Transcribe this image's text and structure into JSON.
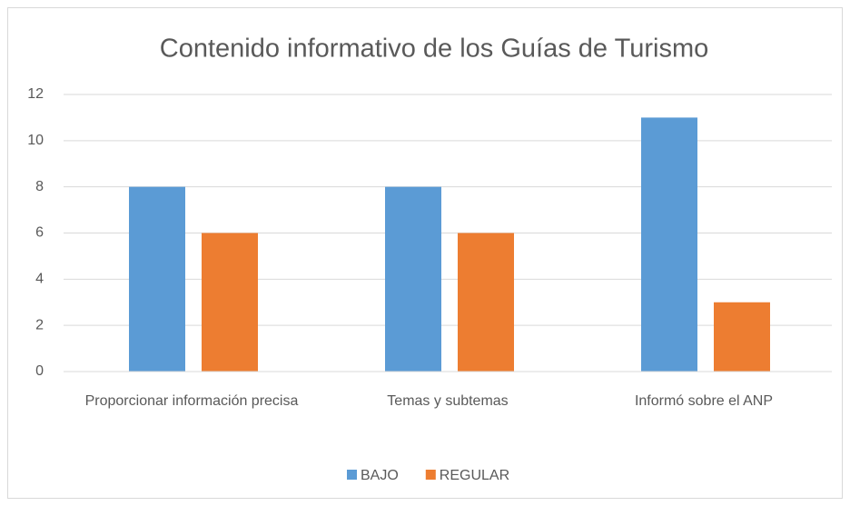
{
  "chart_data": {
    "type": "bar",
    "title": "Contenido informativo de los Guías de Turismo",
    "categories": [
      "Proporcionar información precisa",
      "Temas y subtemas",
      "Informó sobre el ANP"
    ],
    "series": [
      {
        "name": "BAJO",
        "color": "#5b9bd5",
        "values": [
          8,
          8,
          11
        ]
      },
      {
        "name": "REGULAR",
        "color": "#ed7d31",
        "values": [
          6,
          6,
          3
        ]
      }
    ],
    "ylim": [
      0,
      12
    ],
    "yticks": [
      0,
      2,
      4,
      6,
      8,
      10,
      12
    ],
    "grid": true,
    "legend": "bottom"
  }
}
